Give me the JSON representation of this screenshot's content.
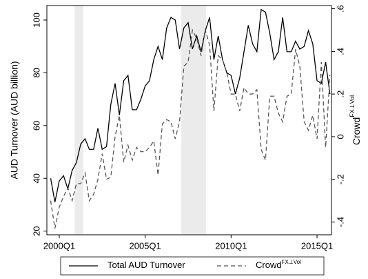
{
  "chart_data": {
    "type": "line",
    "ylabel": "AUD Turnover (AUD billion)",
    "y2label": "Crowd",
    "y2label_sup": "FX⊥Vol",
    "x": [
      1999.5,
      1999.75,
      2000,
      2000.25,
      2000.5,
      2000.75,
      2001,
      2001.25,
      2001.5,
      2001.75,
      2002,
      2002.25,
      2002.5,
      2002.75,
      2003,
      2003.25,
      2003.5,
      2003.75,
      2004,
      2004.25,
      2004.5,
      2004.75,
      2005,
      2005.25,
      2005.5,
      2005.75,
      2006,
      2006.25,
      2006.5,
      2006.75,
      2007,
      2007.25,
      2007.5,
      2007.75,
      2008,
      2008.25,
      2008.5,
      2008.75,
      2009,
      2009.25,
      2009.5,
      2009.75,
      2010,
      2010.25,
      2010.5,
      2010.75,
      2011,
      2011.25,
      2011.5,
      2011.75,
      2012,
      2012.25,
      2012.5,
      2012.75,
      2013,
      2013.25,
      2013.5,
      2013.75,
      2014,
      2014.25,
      2014.5,
      2014.75,
      2015,
      2015.25,
      2015.5,
      2015.75
    ],
    "series": [
      {
        "name": "Total AUD Turnover",
        "color": "#000000",
        "dash": "none",
        "axis": "y",
        "values": [
          40,
          31,
          39,
          41,
          36,
          43,
          46,
          53,
          55,
          51,
          51,
          59,
          51,
          52,
          68,
          76,
          64,
          77,
          79,
          66,
          66,
          70,
          75,
          77,
          85,
          90,
          85,
          97,
          101,
          100,
          89,
          97,
          99,
          89,
          94,
          88,
          96,
          101,
          85,
          94,
          85,
          80,
          79,
          72,
          78,
          88,
          98,
          91,
          88,
          104,
          103,
          95,
          85,
          88,
          101,
          88,
          88,
          92,
          89,
          90,
          96,
          91,
          77,
          76,
          84,
          72
        ]
      },
      {
        "name": "Crowd",
        "name_sup": "FX⊥Vol",
        "color": "#555555",
        "dash": "6,4",
        "axis": "y2",
        "values": [
          -0.3,
          -0.43,
          -0.33,
          -0.28,
          -0.24,
          -0.3,
          -0.22,
          -0.22,
          -0.17,
          -0.3,
          -0.27,
          -0.2,
          -0.08,
          -0.2,
          -0.19,
          0.0,
          0.1,
          -0.12,
          -0.04,
          -0.11,
          -0.05,
          -0.07,
          -0.07,
          -0.05,
          -0.02,
          -0.18,
          0.06,
          0.08,
          0.07,
          -0.01,
          0.07,
          0.33,
          0.35,
          0.5,
          0.46,
          0.38,
          0.5,
          0.43,
          0.12,
          0.38,
          0.36,
          0.3,
          0.2,
          0.2,
          0.12,
          0.23,
          0.2,
          0.2,
          0.22,
          -0.06,
          -0.11,
          0.19,
          0.19,
          0.11,
          0.07,
          0.19,
          0.2,
          0.41,
          0.33,
          0.07,
          0.03,
          0.1,
          -0.01,
          0.35,
          -0.05,
          0.29
        ]
      }
    ],
    "shaded": [
      [
        2000.9,
        2001.4
      ],
      [
        2007.1,
        2008.55
      ]
    ],
    "shade_color": "#ebebeb",
    "xlim": [
      1999.28,
      2015.84
    ],
    "xticks": [
      {
        "value": 2000,
        "label": "2000Q1"
      },
      {
        "value": 2005,
        "label": "2005Q1"
      },
      {
        "value": 2010,
        "label": "2010Q1"
      },
      {
        "value": 2015,
        "label": "2015Q1"
      }
    ],
    "ylim": [
      18.6,
      105.5
    ],
    "yticks": [
      20,
      40,
      60,
      80,
      100
    ],
    "y2lim": [
      -0.46,
      0.615
    ],
    "y2ticks": [
      {
        "value": -0.4,
        "label": "-.4"
      },
      {
        "value": -0.2,
        "label": "-.2"
      },
      {
        "value": 0,
        "label": "0"
      },
      {
        "value": 0.2,
        "label": ".2"
      },
      {
        "value": 0.4,
        "label": ".4"
      },
      {
        "value": 0.6,
        "label": ".6"
      }
    ],
    "grid": false,
    "legend": "bottom"
  }
}
